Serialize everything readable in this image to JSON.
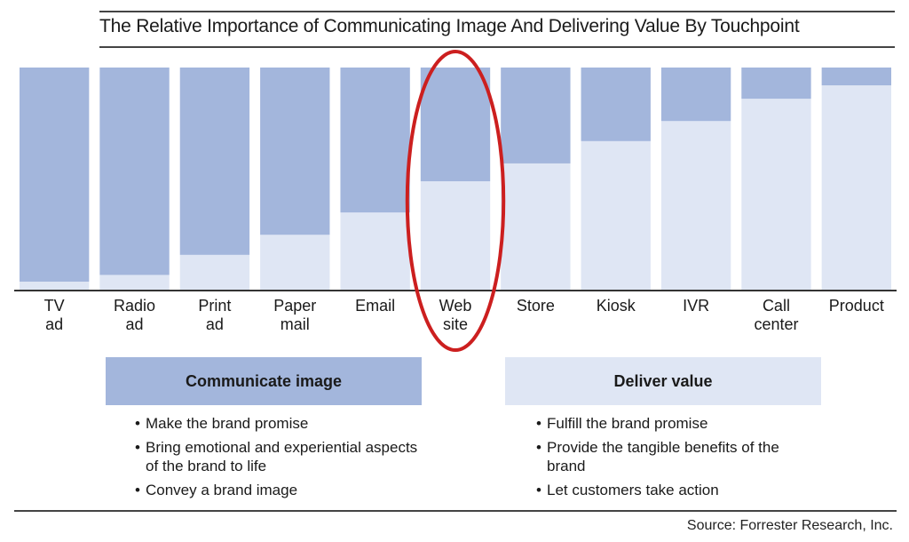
{
  "title": "The Relative Importance of Communicating Image And Delivering Value By Touchpoint",
  "source": "Source: Forrester Research, Inc.",
  "colors": {
    "communicate": "#a3b6dc",
    "deliver": "#dfe6f4",
    "highlight": "#cc1f1f"
  },
  "legend": {
    "communicate_label": "Communicate image",
    "deliver_label": "Deliver value"
  },
  "bullets": {
    "communicate": [
      "Make the brand promise",
      "Bring emotional and experiential aspects of the brand to life",
      "Convey a brand image"
    ],
    "deliver": [
      "Fulfill the brand promise",
      "Provide the tangible benefits of the brand",
      "Let customers take action"
    ]
  },
  "chart_data": {
    "type": "bar",
    "stacked": true,
    "categories": [
      [
        "TV",
        "ad"
      ],
      [
        "Radio",
        "ad"
      ],
      [
        "Print",
        "ad"
      ],
      [
        "Paper",
        "mail"
      ],
      [
        "Email"
      ],
      [
        "Web",
        "site"
      ],
      [
        "Store"
      ],
      [
        "Kiosk"
      ],
      [
        "IVR"
      ],
      [
        "Call",
        "center"
      ],
      [
        "Product"
      ]
    ],
    "series": [
      {
        "name": "Deliver value",
        "values": [
          4,
          7,
          16,
          25,
          35,
          49,
          57,
          67,
          76,
          86,
          92
        ]
      },
      {
        "name": "Communicate image",
        "values": [
          96,
          93,
          84,
          75,
          65,
          51,
          43,
          33,
          24,
          14,
          8
        ]
      }
    ],
    "ylim": [
      0,
      100
    ],
    "highlight_category": 5,
    "grid": false
  }
}
